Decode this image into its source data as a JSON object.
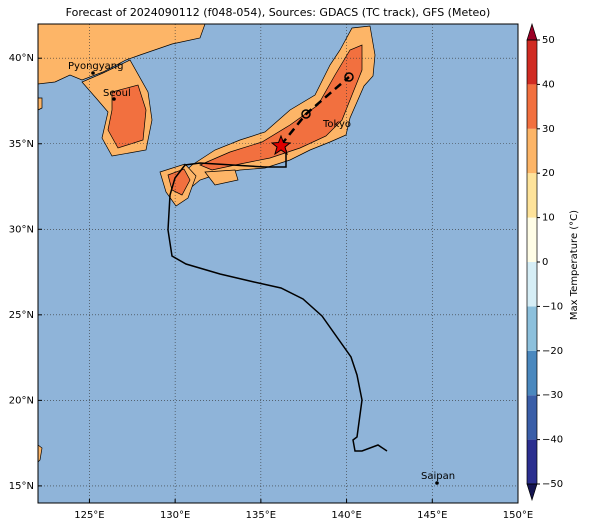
{
  "map": {
    "title": "Forecast of 2024090112 (f048-054), Sources: GDACS (TC track), GFS (Meteo)",
    "xlim": [
      122,
      150
    ],
    "ylim": [
      14,
      42
    ],
    "xticks": [
      {
        "value": 125,
        "label": "125°E"
      },
      {
        "value": 130,
        "label": "130°E"
      },
      {
        "value": 135,
        "label": "135°E"
      },
      {
        "value": 140,
        "label": "140°E"
      },
      {
        "value": 145,
        "label": "145°E"
      },
      {
        "value": 150,
        "label": "150°E"
      }
    ],
    "yticks": [
      {
        "value": 15,
        "label": "15°N"
      },
      {
        "value": 20,
        "label": "20°N"
      },
      {
        "value": 25,
        "label": "25°N"
      },
      {
        "value": 30,
        "label": "30°N"
      },
      {
        "value": 35,
        "label": "35°N"
      },
      {
        "value": 40,
        "label": "40°N"
      }
    ],
    "grid": true,
    "cities": [
      "Pyongyang",
      "Seoul",
      "Tokyo",
      "Saipan"
    ],
    "colorbar": {
      "label": "Max Temperature (°C)",
      "lim": [
        -50,
        50
      ],
      "ticks": [
        {
          "value": -50,
          "label": "−50"
        },
        {
          "value": -40,
          "label": "−40"
        },
        {
          "value": -30,
          "label": "−30"
        },
        {
          "value": -20,
          "label": "−20"
        },
        {
          "value": -10,
          "label": "−10"
        },
        0,
        10,
        20,
        30,
        40,
        50
      ],
      "colors": [
        "#2b2f8f",
        "#3a5ea8",
        "#4a88be",
        "#8cc0dc",
        "#d6eef6",
        "#fffde6",
        "#fee39a",
        "#fdb567",
        "#f2703f",
        "#d02b22"
      ],
      "under": "#141450",
      "over": "#9a0025"
    }
  }
}
